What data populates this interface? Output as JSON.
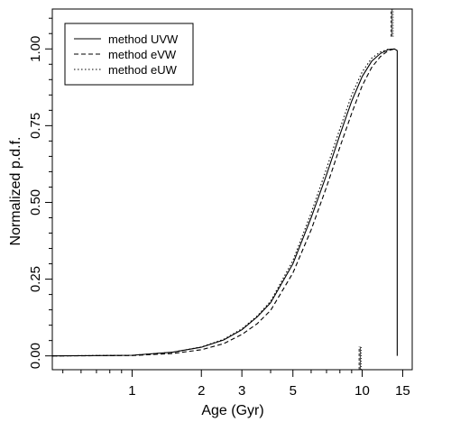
{
  "chart_data": {
    "type": "line",
    "xlabel": "Age (Gyr)",
    "ylabel": "Normalized p.d.f.",
    "x_scale": "log",
    "xlim": [
      0.45,
      16.5
    ],
    "ylim": [
      -0.045,
      1.13
    ],
    "x_ticks": [
      1,
      2,
      3,
      5,
      10,
      15
    ],
    "x_tick_labels": [
      "1",
      "2",
      "3",
      "5",
      "10",
      "15"
    ],
    "y_ticks": [
      0.0,
      0.25,
      0.5,
      0.75,
      1.0
    ],
    "y_tick_labels": [
      "0.00",
      "0.25",
      "0.50",
      "0.75",
      "1.00"
    ],
    "legend_position": "top-left",
    "grid": false,
    "series": [
      {
        "name": "method UVW",
        "style": "solid",
        "x": [
          0.45,
          1.0,
          1.5,
          2.0,
          2.5,
          3.0,
          3.5,
          4.0,
          5.0,
          6.0,
          7.0,
          8.0,
          9.0,
          10.0,
          11.0,
          12.0,
          13.0,
          13.8,
          14.2
        ],
        "y": [
          0.0,
          0.002,
          0.012,
          0.028,
          0.052,
          0.085,
          0.127,
          0.173,
          0.3,
          0.45,
          0.59,
          0.72,
          0.83,
          0.91,
          0.96,
          0.985,
          0.998,
          1.0,
          0.995
        ]
      },
      {
        "name": "method eVW",
        "style": "dashed",
        "x": [
          0.45,
          1.0,
          1.5,
          2.0,
          2.5,
          3.0,
          3.5,
          4.0,
          5.0,
          6.0,
          7.0,
          8.0,
          9.0,
          10.0,
          11.0,
          12.0,
          13.0,
          13.8,
          14.2
        ],
        "y": [
          0.0,
          0.001,
          0.008,
          0.02,
          0.04,
          0.07,
          0.105,
          0.148,
          0.27,
          0.41,
          0.55,
          0.68,
          0.79,
          0.88,
          0.94,
          0.975,
          0.995,
          1.0,
          0.995
        ]
      },
      {
        "name": "method eUW",
        "style": "dotted",
        "x": [
          0.45,
          1.0,
          1.5,
          2.0,
          2.5,
          3.0,
          3.5,
          4.0,
          5.0,
          6.0,
          7.0,
          8.0,
          9.0,
          10.0,
          11.0,
          12.0,
          13.0,
          13.8,
          14.2
        ],
        "y": [
          0.0,
          0.002,
          0.012,
          0.029,
          0.054,
          0.088,
          0.13,
          0.178,
          0.31,
          0.465,
          0.61,
          0.74,
          0.85,
          0.925,
          0.97,
          0.99,
          0.999,
          1.0,
          0.995
        ]
      }
    ],
    "annotations": [
      {
        "type": "vertical-mark",
        "x": 9.8,
        "y_range": [
          -0.045,
          0.03
        ],
        "note": "short marker on age axis"
      },
      {
        "type": "vertical-mark",
        "x": 13.5,
        "y_range": [
          1.04,
          1.13
        ],
        "note": "short marker above peak"
      }
    ]
  }
}
